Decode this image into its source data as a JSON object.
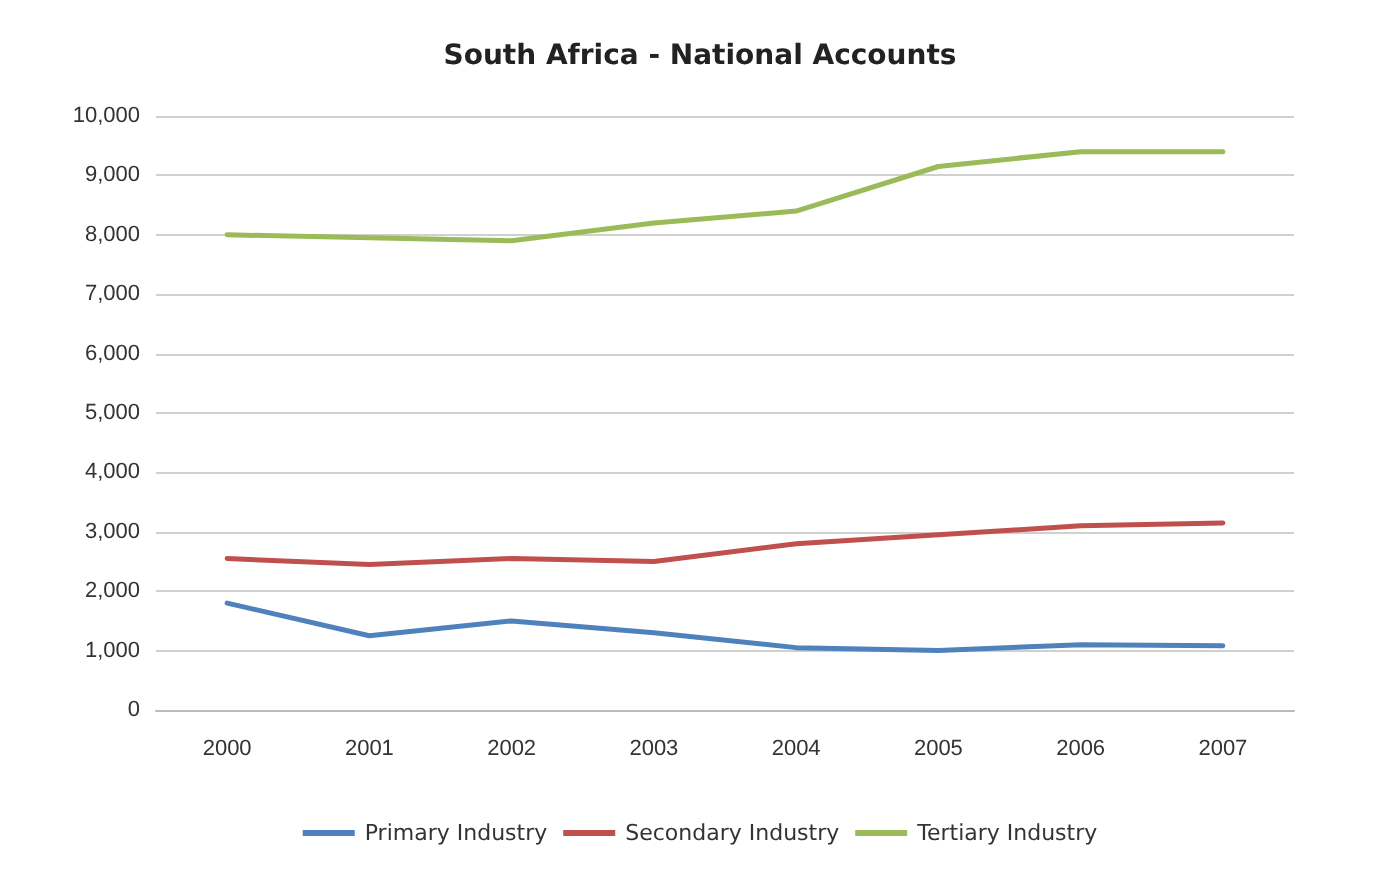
{
  "chart_data": {
    "type": "line",
    "title": "South Africa - National Accounts",
    "categories": [
      "2000",
      "2001",
      "2002",
      "2003",
      "2004",
      "2005",
      "2006",
      "2007"
    ],
    "series": [
      {
        "name": "Primary Industry",
        "color": "#4f81bd",
        "values": [
          1800,
          1250,
          1500,
          1300,
          1050,
          1000,
          1100,
          1080
        ]
      },
      {
        "name": "Secondary Industry",
        "color": "#c0504d",
        "values": [
          2550,
          2450,
          2550,
          2500,
          2800,
          2950,
          3100,
          3150
        ]
      },
      {
        "name": "Tertiary Industry",
        "color": "#9bbb59",
        "values": [
          8000,
          7950,
          7900,
          8200,
          8400,
          9150,
          9400,
          9400
        ]
      }
    ],
    "ylim": [
      0,
      10000
    ],
    "yticks": [
      {
        "value": 0,
        "label": "0"
      },
      {
        "value": 1000,
        "label": "1,000"
      },
      {
        "value": 2000,
        "label": "2,000"
      },
      {
        "value": 3000,
        "label": "3,000"
      },
      {
        "value": 4000,
        "label": "4,000"
      },
      {
        "value": 5000,
        "label": "5,000"
      },
      {
        "value": 6000,
        "label": "6,000"
      },
      {
        "value": 7000,
        "label": "7,000"
      },
      {
        "value": 8000,
        "label": "8,000"
      },
      {
        "value": 9000,
        "label": "9,000"
      },
      {
        "value": 10000,
        "label": "10,000"
      }
    ],
    "grid": "y",
    "legend": "bottom",
    "marker": "none",
    "line_style": "solid"
  }
}
